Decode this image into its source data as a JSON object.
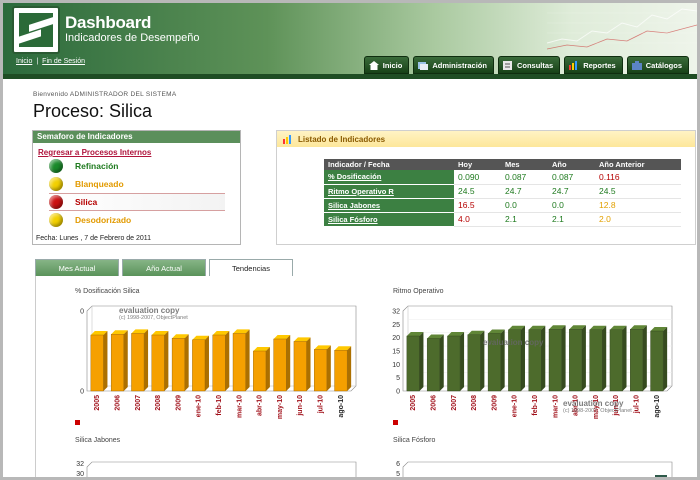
{
  "header": {
    "title": "Dashboard",
    "subtitle": "Indicadores de Desempeño",
    "links": [
      "Inicio",
      "Fin de Sesión"
    ],
    "nav": [
      {
        "label": "Inicio",
        "icon": "home-icon"
      },
      {
        "label": "Administración",
        "icon": "admin-icon"
      },
      {
        "label": "Consultas",
        "icon": "query-icon"
      },
      {
        "label": "Reportes",
        "icon": "reports-icon"
      },
      {
        "label": "Catálogos",
        "icon": "catalogs-icon"
      }
    ]
  },
  "welcome": "Bienvenido ADMINISTRADOR DEL SISTEMA",
  "page_title": "Proceso: Silica",
  "semaforo": {
    "title": "Semaforo de Indicadores",
    "back_link": "Regresar a Procesos Internos",
    "items": [
      {
        "label": "Refinación",
        "status": "green",
        "color": "#1a8a2a",
        "text_color": "#1e7a1e"
      },
      {
        "label": "Blanqueado",
        "status": "yellow",
        "color": "#f2d000",
        "text_color": "#e29a00"
      },
      {
        "label": "Silica",
        "status": "red",
        "color": "#cc1111",
        "text_color": "#b50000"
      },
      {
        "label": "Desodorizado",
        "status": "yellow",
        "color": "#f2d000",
        "text_color": "#e29a00"
      }
    ],
    "date": "Fecha: Lunes , 7 de Febrero de 2011"
  },
  "indicadores": {
    "title": "Listado de Indicadores",
    "columns": [
      "Indicador / Fecha",
      "Hoy",
      "Mes",
      "Año",
      "Año Anterior"
    ],
    "rows": [
      {
        "name": "% Dosificación",
        "values": [
          "0.090",
          "0.087",
          "0.087",
          "0.116"
        ],
        "colors": [
          "#1e7a1e",
          "#1e7a1e",
          "#1e7a1e",
          "#b50000"
        ]
      },
      {
        "name": "Ritmo Operativo R",
        "values": [
          "24.5",
          "24.7",
          "24.7",
          "24.5"
        ],
        "colors": [
          "#1e7a1e",
          "#1e7a1e",
          "#1e7a1e",
          "#1e7a1e"
        ]
      },
      {
        "name": "Silica Jabones",
        "values": [
          "16.5",
          "0.0",
          "0.0",
          "12.8"
        ],
        "colors": [
          "#b50000",
          "#1e7a1e",
          "#1e7a1e",
          "#e2a000"
        ]
      },
      {
        "name": "Silica Fósforo",
        "values": [
          "4.0",
          "2.1",
          "2.1",
          "2.0"
        ],
        "colors": [
          "#b50000",
          "#1e7a1e",
          "#1e7a1e",
          "#e2a000"
        ]
      }
    ]
  },
  "tabs": [
    {
      "label": "Mes Actual",
      "active": false
    },
    {
      "label": "Año Actual",
      "active": false
    },
    {
      "label": "Tendencias",
      "active": true
    }
  ],
  "charts": {
    "dos_title": "% Dosificación Silica",
    "ritmo_title": "Ritmo Operativo",
    "jabones_title": "Silica Jabones",
    "fosforo_title": "Silica Fósforo",
    "watermark": "evaluation copy",
    "watermark_small": "(c) 1998-2007, ObjectPlanet"
  },
  "chart_data": [
    {
      "type": "bar",
      "title": "% Dosificación Silica",
      "categories": [
        "2005",
        "2006",
        "2007",
        "2008",
        "2009",
        "ene-10",
        "feb-10",
        "mar-10",
        "abr-10",
        "may-10",
        "jun-10",
        "jul-10",
        "ago-10"
      ],
      "values": [
        0.7,
        0.71,
        0.72,
        0.7,
        0.66,
        0.64,
        0.7,
        0.72,
        0.5,
        0.65,
        0.62,
        0.52,
        0.51
      ],
      "ylim": [
        0,
        1
      ],
      "yticks": [
        "0",
        "0"
      ],
      "color": "#f5a000"
    },
    {
      "type": "bar",
      "title": "Ritmo Operativo",
      "categories": [
        "2005",
        "2006",
        "2007",
        "2008",
        "2009",
        "ene-10",
        "feb-10",
        "mar-10",
        "abr-10",
        "may-10",
        "jun-10",
        "jul-10",
        "ago-10"
      ],
      "values": [
        22.0,
        21.0,
        22.0,
        22.5,
        23.0,
        24.5,
        24.5,
        24.7,
        24.7,
        24.5,
        24.5,
        24.7,
        24.0
      ],
      "ylim": [
        0,
        32
      ],
      "yticks": [
        "0",
        "5",
        "10",
        "15",
        "20",
        "25",
        "32"
      ],
      "color": "#4d6b2c"
    },
    {
      "type": "bar",
      "title": "Silica Jabones",
      "categories": [],
      "values": [],
      "ylim": [
        0,
        32
      ],
      "yticks": [
        "32",
        "30"
      ]
    },
    {
      "type": "bar",
      "title": "Silica Fósforo",
      "categories": [],
      "values": [],
      "ylim": [
        0,
        6
      ],
      "yticks": [
        "6",
        "5"
      ]
    }
  ]
}
